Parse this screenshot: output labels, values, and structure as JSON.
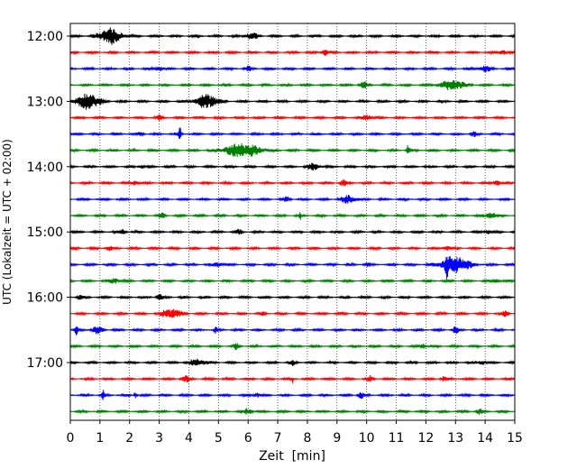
{
  "chart_data": {
    "type": "line",
    "title": "",
    "xlabel": "Zeit  [min]",
    "ylabel": "UTC (Lokalzeit = UTC + 02:00)",
    "xlim": [
      0,
      15
    ],
    "x_ticks": [
      "0",
      "1",
      "2",
      "3",
      "4",
      "5",
      "6",
      "7",
      "8",
      "9",
      "10",
      "11",
      "12",
      "13",
      "14",
      "15"
    ],
    "y_ticks": [
      "12:00",
      "13:00",
      "14:00",
      "15:00",
      "16:00",
      "17:00"
    ],
    "grid": "vertical dotted",
    "legend": "none",
    "trace_colors": [
      "#000000",
      "#ff0000",
      "#0000ff",
      "#008000"
    ],
    "traces": [
      {
        "start": "12:00",
        "color": "#000000",
        "events": [
          [
            1.35,
            4.2,
            0.35
          ],
          [
            6.1,
            1.6,
            0.2
          ]
        ]
      },
      {
        "start": "12:15",
        "color": "#ff0000",
        "events": [
          [
            8.6,
            1.6,
            0.1
          ],
          [
            14.6,
            1.2,
            0.1
          ]
        ]
      },
      {
        "start": "12:30",
        "color": "#0000ff",
        "events": [
          [
            3.0,
            1.3,
            0.1
          ],
          [
            6.0,
            1.3,
            0.1
          ],
          [
            14.0,
            1.3,
            0.2
          ]
        ]
      },
      {
        "start": "12:45",
        "color": "#008000",
        "events": [
          [
            9.9,
            1.5,
            0.15
          ],
          [
            12.9,
            2.6,
            0.4
          ]
        ]
      },
      {
        "start": "13:00",
        "color": "#000000",
        "events": [
          [
            0.6,
            4.0,
            0.4
          ],
          [
            4.6,
            3.6,
            0.35
          ]
        ]
      },
      {
        "start": "13:15",
        "color": "#ff0000",
        "events": [
          [
            3.0,
            1.3,
            0.1
          ],
          [
            10.0,
            1.5,
            0.15
          ]
        ]
      },
      {
        "start": "13:30",
        "color": "#0000ff",
        "events": [
          [
            3.7,
            3.2,
            0.05
          ],
          [
            2.4,
            1.1,
            0.1
          ],
          [
            13.6,
            1.2,
            0.1
          ]
        ]
      },
      {
        "start": "13:45",
        "color": "#008000",
        "events": [
          [
            5.8,
            3.6,
            0.6
          ],
          [
            11.4,
            3.0,
            0.05
          ]
        ]
      },
      {
        "start": "14:00",
        "color": "#000000",
        "events": [
          [
            8.2,
            1.8,
            0.2
          ],
          [
            2.4,
            1.0,
            0.1
          ]
        ]
      },
      {
        "start": "14:15",
        "color": "#ff0000",
        "events": [
          [
            2.2,
            1.4,
            0.1
          ],
          [
            9.2,
            1.7,
            0.1
          ],
          [
            14.4,
            1.5,
            0.1
          ]
        ]
      },
      {
        "start": "14:30",
        "color": "#0000ff",
        "events": [
          [
            7.3,
            1.5,
            0.1
          ],
          [
            9.4,
            2.0,
            0.25
          ]
        ]
      },
      {
        "start": "14:45",
        "color": "#008000",
        "events": [
          [
            7.75,
            3.0,
            0.02
          ],
          [
            3.1,
            1.2,
            0.1
          ],
          [
            14.2,
            1.3,
            0.2
          ]
        ]
      },
      {
        "start": "15:00",
        "color": "#000000",
        "events": [
          [
            1.8,
            1.2,
            0.1
          ],
          [
            5.7,
            1.1,
            0.1
          ],
          [
            14.1,
            1.1,
            0.1
          ]
        ]
      },
      {
        "start": "15:15",
        "color": "#ff0000",
        "events": [
          [
            1.3,
            1.4,
            0.1
          ],
          [
            12.7,
            1.2,
            0.1
          ]
        ]
      },
      {
        "start": "15:30",
        "color": "#0000ff",
        "events": [
          [
            12.7,
            5.0,
            0.05
          ],
          [
            13.0,
            4.4,
            0.45
          ],
          [
            5.0,
            1.2,
            0.15
          ],
          [
            10.0,
            1.1,
            0.1
          ]
        ]
      },
      {
        "start": "15:45",
        "color": "#008000",
        "events": [
          [
            1.5,
            1.3,
            0.15
          ],
          [
            14.4,
            1.1,
            0.1
          ]
        ]
      },
      {
        "start": "16:00",
        "color": "#000000",
        "events": [
          [
            3.0,
            1.5,
            0.1
          ],
          [
            0.3,
            1.1,
            0.1
          ]
        ]
      },
      {
        "start": "16:15",
        "color": "#ff0000",
        "events": [
          [
            3.4,
            2.6,
            0.3
          ],
          [
            6.5,
            1.6,
            0.05
          ],
          [
            14.7,
            1.4,
            0.1
          ]
        ]
      },
      {
        "start": "16:30",
        "color": "#0000ff",
        "events": [
          [
            0.2,
            2.5,
            0.05
          ],
          [
            0.9,
            1.7,
            0.2
          ],
          [
            4.9,
            1.6,
            0.05
          ],
          [
            13.0,
            1.6,
            0.1
          ]
        ]
      },
      {
        "start": "16:45",
        "color": "#008000",
        "events": [
          [
            5.6,
            1.5,
            0.1
          ],
          [
            11.9,
            1.4,
            0.1
          ]
        ]
      },
      {
        "start": "17:00",
        "color": "#000000",
        "events": [
          [
            4.3,
            1.7,
            0.3
          ],
          [
            7.5,
            1.1,
            0.1
          ],
          [
            13.9,
            1.4,
            0.1
          ]
        ]
      },
      {
        "start": "17:15",
        "color": "#ff0000",
        "events": [
          [
            3.9,
            1.5,
            0.15
          ],
          [
            7.5,
            2.2,
            0.02
          ],
          [
            10.1,
            1.3,
            0.1
          ],
          [
            12.6,
            1.1,
            0.1
          ]
        ]
      },
      {
        "start": "17:30",
        "color": "#0000ff",
        "events": [
          [
            1.1,
            2.5,
            0.05
          ],
          [
            2.2,
            1.5,
            0.05
          ],
          [
            6.3,
            1.3,
            0.1
          ],
          [
            9.8,
            1.5,
            0.1
          ]
        ]
      },
      {
        "start": "17:45",
        "color": "#008000",
        "events": [
          [
            6.0,
            1.4,
            0.15
          ],
          [
            13.8,
            1.3,
            0.1
          ]
        ]
      }
    ]
  }
}
